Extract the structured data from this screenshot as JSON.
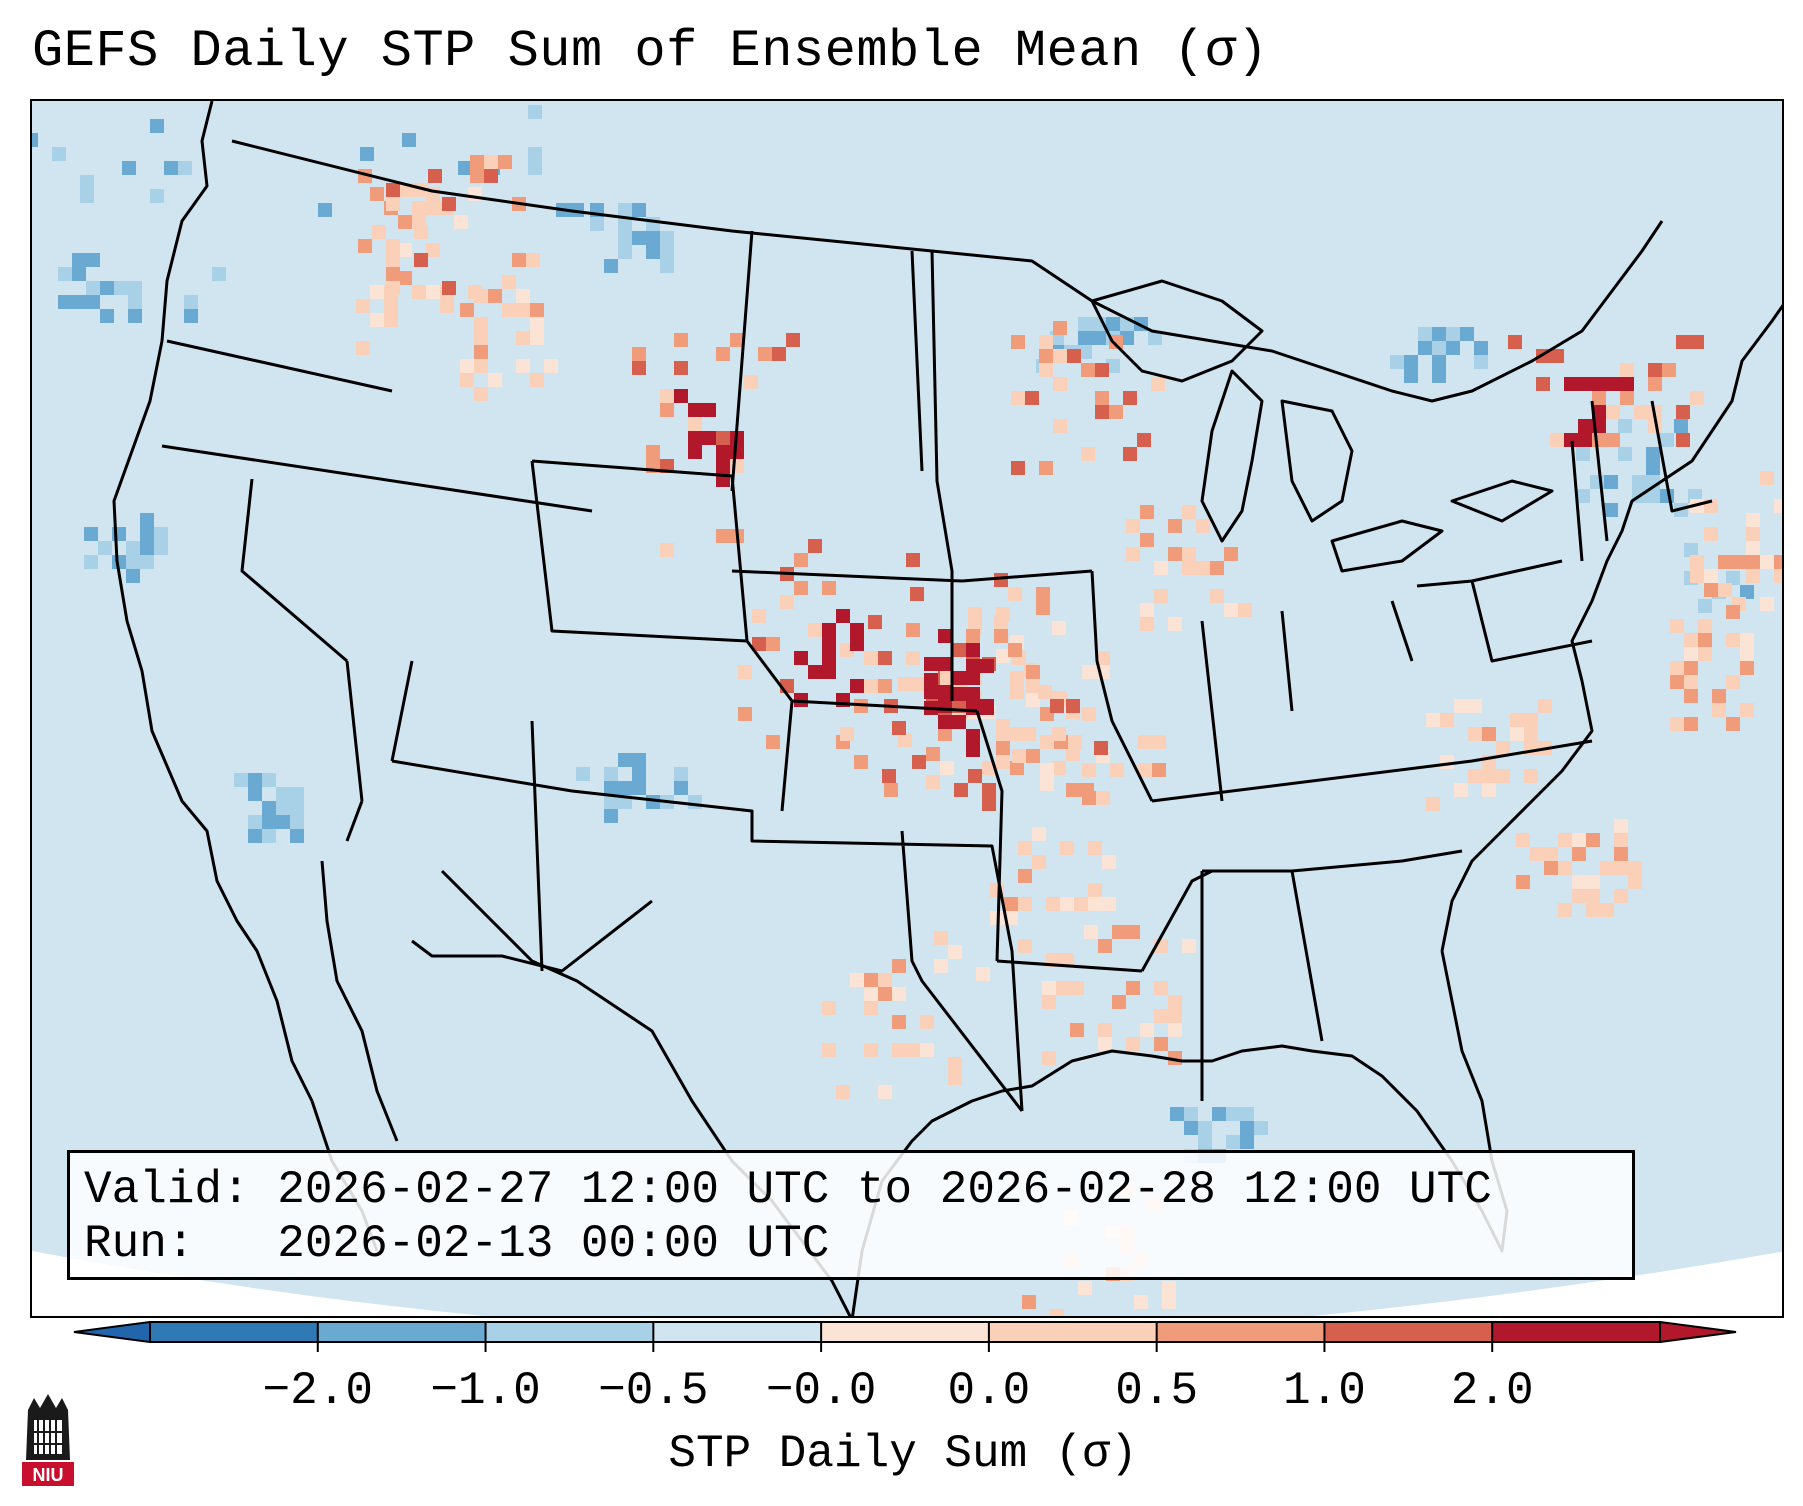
{
  "title": "GEFS Daily STP Sum of Ensemble Mean (σ)",
  "info": {
    "valid_label": "Valid:",
    "valid_value": "2026-02-27 12:00 UTC to 2026-02-28 12:00 UTC",
    "run_label": "Run:",
    "run_value": "2026-02-13 00:00 UTC"
  },
  "colorbar": {
    "label": "STP Daily Sum (σ)",
    "ticks": [
      "−2.0",
      "−1.0",
      "−0.5",
      "−0.0",
      "0.0",
      "0.5",
      "1.0",
      "2.0"
    ],
    "colors": [
      "#2f79b5",
      "#6aa9d2",
      "#a8d0e6",
      "#d1e5f0",
      "#fbe3d6",
      "#fbd0b9",
      "#f09b7a",
      "#d6604d",
      "#b2182b"
    ],
    "under_color": "#2166ac",
    "over_color": "#b2182b"
  },
  "logo": {
    "text": "NIU",
    "color": "#c8102e"
  }
}
